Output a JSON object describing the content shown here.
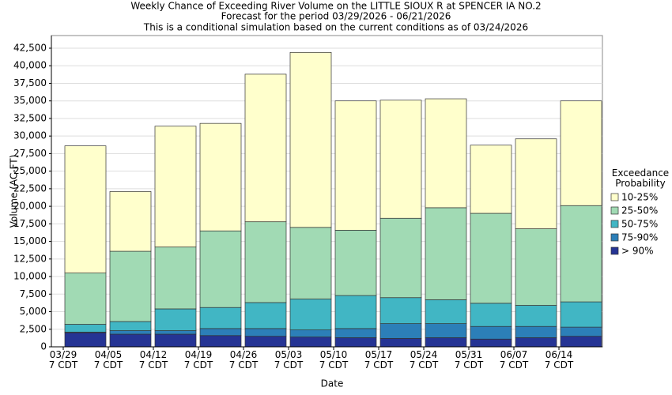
{
  "chart_data": {
    "type": "stacked_bar",
    "title": [
      "Weekly Chance of Exceeding River Volume on the LITTLE SIOUX R at SPENCER IA NO.2",
      "Forecast for the period 03/29/2026 - 06/21/2026",
      "This is a conditional simulation based on the current conditions as of 03/24/2026"
    ],
    "x_label": "Date",
    "y_label": "Volume (AC-FT)",
    "legend_title": "Exceedance\nProbability",
    "categories": [
      "03/29\n7 CDT",
      "04/05\n7 CDT",
      "04/12\n7 CDT",
      "04/19\n7 CDT",
      "04/26\n7 CDT",
      "05/03\n7 CDT",
      "05/10\n7 CDT",
      "05/17\n7 CDT",
      "05/24\n7 CDT",
      "05/31\n7 CDT",
      "06/07\n7 CDT",
      "06/14\n7 CDT"
    ],
    "series": [
      {
        "name": "> 90%",
        "color": "#253494",
        "values": [
          2000,
          1800,
          1800,
          1600,
          1500,
          1400,
          1300,
          1200,
          1300,
          1100,
          1300,
          1500
        ]
      },
      {
        "name": "75-90%",
        "color": "#2c7fb8",
        "values": [
          100,
          500,
          500,
          1000,
          1100,
          1000,
          1300,
          2100,
          2000,
          1800,
          1600,
          1300
        ]
      },
      {
        "name": "50-75%",
        "color": "#41b6c4",
        "values": [
          1100,
          1300,
          3100,
          3000,
          3700,
          4400,
          4700,
          3700,
          3400,
          3300,
          3000,
          3600
        ]
      },
      {
        "name": "25-50%",
        "color": "#a1dab4",
        "values": [
          7300,
          10000,
          8800,
          10900,
          11500,
          10200,
          9300,
          11300,
          13100,
          12800,
          10900,
          13700
        ]
      },
      {
        "name": "10-25%",
        "color": "#ffffcc",
        "values": [
          18100,
          8500,
          17200,
          15300,
          21000,
          24900,
          18400,
          16800,
          15500,
          9700,
          12800,
          14900
        ]
      }
    ],
    "ylim": [
      0,
      44300
    ],
    "yticks": [
      0,
      {
        "value": 2500,
        "label": "2,500"
      },
      {
        "value": 5000,
        "label": "5,000"
      },
      {
        "value": 7500,
        "label": "7,500"
      },
      {
        "value": 10000,
        "label": "10,000"
      },
      {
        "value": 12500,
        "label": "12,500"
      },
      {
        "value": 15000,
        "label": "15,000"
      },
      {
        "value": 17500,
        "label": "17,500"
      },
      {
        "value": 20000,
        "label": "20,000"
      },
      {
        "value": 22500,
        "label": "22,500"
      },
      {
        "value": 25000,
        "label": "25,000"
      },
      {
        "value": 27500,
        "label": "27,500"
      },
      {
        "value": 30000,
        "label": "30,000"
      },
      {
        "value": 32500,
        "label": "32,500"
      },
      {
        "value": 35000,
        "label": "35,000"
      },
      {
        "value": 37500,
        "label": "37,500"
      },
      {
        "value": 40000,
        "label": "40,000"
      },
      {
        "value": 42500,
        "label": "42,500"
      }
    ],
    "grid": true
  }
}
